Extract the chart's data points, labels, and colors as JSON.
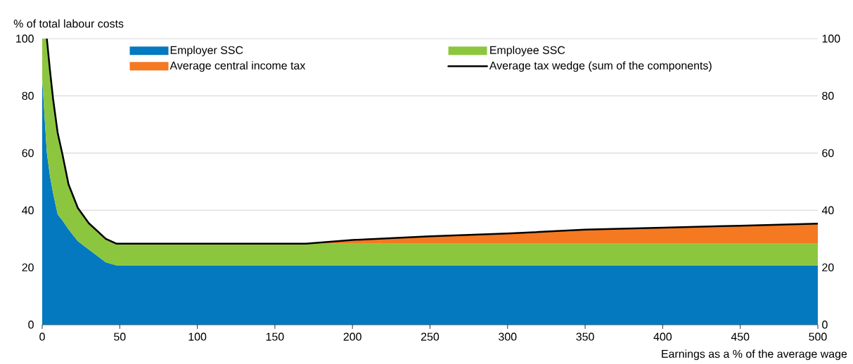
{
  "chart_data": {
    "type": "area",
    "stacked": true,
    "ylabel": "% of total labour costs",
    "xlabel": "Earnings as a % of the average wage",
    "x": [
      0,
      3,
      5,
      7,
      10,
      13,
      17,
      23,
      30,
      41,
      48,
      170,
      200,
      250,
      300,
      350,
      400,
      450,
      500
    ],
    "series": [
      {
        "name": "Employer SSC",
        "color": "#0579bf",
        "values": [
          86,
          60,
          52,
          46,
          38.5,
          36.5,
          33.3,
          29.2,
          26.3,
          21.8,
          20.7,
          20.7,
          20.7,
          20.7,
          20.7,
          20.7,
          20.7,
          20.7,
          20.7
        ]
      },
      {
        "name": "Employee SSC",
        "color": "#8cc63f",
        "values": [
          14,
          40,
          37,
          33,
          28.5,
          23.2,
          15.7,
          11.6,
          9.2,
          8.2,
          7.6,
          7.6,
          7.6,
          7.6,
          7.6,
          7.6,
          7.6,
          7.6,
          7.6
        ]
      },
      {
        "name": "Average central income tax",
        "color": "#f47920",
        "values": [
          null,
          null,
          null,
          null,
          null,
          null,
          null,
          null,
          null,
          null,
          null,
          0,
          1.3,
          2.6,
          3.6,
          4.9,
          5.6,
          6.3,
          7.0
        ]
      },
      {
        "name": "Average tax wedge (sum of the components)",
        "type": "line",
        "color": "#000000",
        "x": [
          3,
          5,
          7,
          10,
          13,
          17,
          23,
          30,
          41,
          48,
          170,
          200,
          250,
          300,
          350,
          400,
          450,
          500
        ],
        "values": [
          100,
          89,
          79,
          67,
          59.7,
          49,
          40.8,
          35.5,
          30,
          28.3,
          28.3,
          29.6,
          30.9,
          31.9,
          33.2,
          33.9,
          34.6,
          35.3
        ]
      }
    ],
    "xlim": [
      0,
      500
    ],
    "xticks": [
      0,
      50,
      100,
      150,
      200,
      250,
      300,
      350,
      400,
      450,
      500
    ],
    "ylim": [
      0,
      100
    ],
    "yticks": [
      0,
      20,
      40,
      60,
      80,
      100
    ],
    "y2lim": [
      0,
      100
    ],
    "y2ticks": [
      0,
      20,
      40,
      60,
      80,
      100
    ],
    "grid": "y",
    "legend": "top"
  }
}
